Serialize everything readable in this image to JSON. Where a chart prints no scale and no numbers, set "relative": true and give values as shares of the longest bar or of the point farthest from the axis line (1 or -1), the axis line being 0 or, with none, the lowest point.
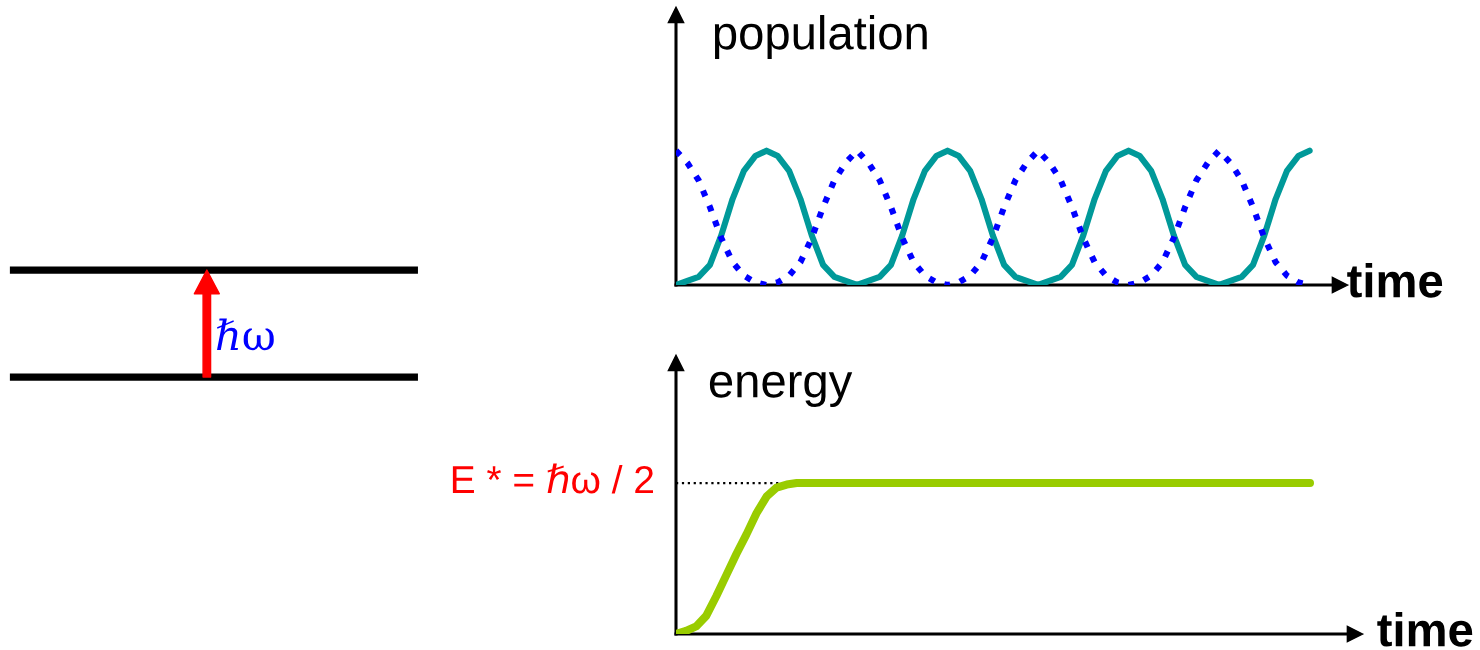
{
  "chart_data": [
    {
      "type": "other",
      "annotations": [
        "ℏω"
      ]
    },
    {
      "type": "line",
      "relative": true,
      "ylabel": "population",
      "xlabel": "time",
      "categories": [
        null,
        null,
        null,
        null,
        null,
        null,
        null,
        null,
        null,
        null,
        null,
        null,
        null,
        null,
        null,
        null,
        null,
        null,
        null,
        null,
        null,
        null,
        null,
        null,
        null,
        null,
        null,
        null,
        null,
        null,
        null,
        null,
        null,
        null,
        null,
        null,
        null,
        null,
        null,
        null,
        null,
        null,
        null,
        null,
        null,
        null,
        null,
        null,
        null,
        null,
        null,
        null,
        null,
        null,
        null,
        null,
        null
      ],
      "series": [
        {
          "color": "#009999",
          "values": [
            0,
            0.03,
            0.06,
            0.15,
            0.37,
            0.64,
            0.85,
            0.96,
            1,
            0.96,
            0.85,
            0.64,
            0.37,
            0.15,
            0.06,
            0.03,
            0,
            0.03,
            0.06,
            0.15,
            0.37,
            0.64,
            0.85,
            0.96,
            1,
            0.96,
            0.85,
            0.64,
            0.37,
            0.15,
            0.06,
            0.03,
            0,
            0.03,
            0.06,
            0.15,
            0.37,
            0.64,
            0.85,
            0.96,
            1,
            0.96,
            0.85,
            0.64,
            0.37,
            0.15,
            0.06,
            0.03,
            0,
            0.03,
            0.06,
            0.15,
            0.37,
            0.64,
            0.85,
            0.96,
            1
          ]
        },
        {
          "color": "#0000ff",
          "line_style": "dotted",
          "values": [
            1,
            0.91,
            0.78,
            0.58,
            0.35,
            0.17,
            0.07,
            0.02,
            0,
            0.02,
            0.07,
            0.17,
            0.35,
            0.58,
            0.78,
            0.91,
            1,
            0.91,
            0.78,
            0.58,
            0.35,
            0.17,
            0.07,
            0.02,
            0,
            0.02,
            0.07,
            0.17,
            0.35,
            0.58,
            0.78,
            0.91,
            1,
            0.91,
            0.78,
            0.58,
            0.35,
            0.17,
            0.07,
            0.02,
            0,
            0.02,
            0.07,
            0.17,
            0.35,
            0.58,
            0.78,
            0.91,
            1,
            0.91,
            0.78,
            0.58,
            0.35,
            0.17,
            0.07,
            0.02,
            0
          ]
        }
      ]
    },
    {
      "type": "line",
      "relative": true,
      "ylabel": "energy",
      "xlabel": "time",
      "categories": [
        null,
        null,
        null,
        null,
        null,
        null,
        null,
        null,
        null,
        null,
        null,
        null,
        null,
        null,
        null,
        null,
        null,
        null,
        null,
        null,
        null,
        null,
        null,
        null,
        null,
        null,
        null,
        null,
        null,
        null,
        null,
        null,
        null,
        null,
        null,
        null,
        null,
        null,
        null,
        null,
        null,
        null,
        null,
        null,
        null,
        null,
        null,
        null,
        null,
        null,
        null,
        null,
        null,
        null,
        null,
        null,
        null,
        null,
        null,
        null,
        null,
        null,
        null,
        null
      ],
      "series": [
        {
          "color": "#99cc00",
          "values": [
            0,
            0.02,
            0.05,
            0.12,
            0.25,
            0.39,
            0.53,
            0.66,
            0.8,
            0.91,
            0.97,
            0.99,
            1,
            1,
            1,
            1,
            1,
            1,
            1,
            1,
            1,
            1,
            1,
            1,
            1,
            1,
            1,
            1,
            1,
            1,
            1,
            1,
            1,
            1,
            1,
            1,
            1,
            1,
            1,
            1,
            1,
            1,
            1,
            1,
            1,
            1,
            1,
            1,
            1,
            1,
            1,
            1,
            1,
            1,
            1,
            1,
            1,
            1,
            1,
            1,
            1,
            1,
            1,
            1
          ]
        }
      ],
      "ref_lines": [
        {
          "axis": "y",
          "value": 1,
          "label": "E * = ℏω / 2",
          "color": "#000000",
          "line_style": "dotted"
        }
      ]
    }
  ]
}
